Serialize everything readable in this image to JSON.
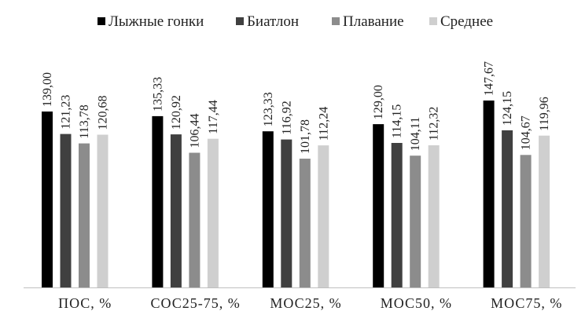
{
  "chart_data": {
    "type": "bar",
    "title": "",
    "xlabel": "",
    "ylabel": "",
    "ylim": [
      0,
      160
    ],
    "grid": false,
    "legend_position": "top",
    "categories": [
      "ПОС, %",
      "СОС25-75, %",
      "МОС25, %",
      "МОС50, %",
      "МОС75, %"
    ],
    "series": [
      {
        "name": "Лыжные гонки",
        "color": "#000000",
        "values": [
          139.0,
          135.33,
          123.33,
          129.0,
          147.67
        ],
        "labels": [
          "139,00",
          "135,33",
          "123,33",
          "129,00",
          "147,67"
        ]
      },
      {
        "name": "Биатлон",
        "color": "#404040",
        "values": [
          121.23,
          120.92,
          116.92,
          114.15,
          124.15
        ],
        "labels": [
          "121,23",
          "120,92",
          "116,92",
          "114,15",
          "124,15"
        ]
      },
      {
        "name": "Плавание",
        "color": "#8c8c8c",
        "values": [
          113.78,
          106.44,
          101.78,
          104.11,
          104.67
        ],
        "labels": [
          "113,78",
          "106,44",
          "101,78",
          "104,11",
          "104,67"
        ]
      },
      {
        "name": "Среднее",
        "color": "#cfcfcf",
        "values": [
          120.68,
          117.44,
          112.24,
          112.32,
          119.96
        ],
        "labels": [
          "120,68",
          "117,44",
          "112,24",
          "112,32",
          "119,96"
        ]
      }
    ]
  }
}
